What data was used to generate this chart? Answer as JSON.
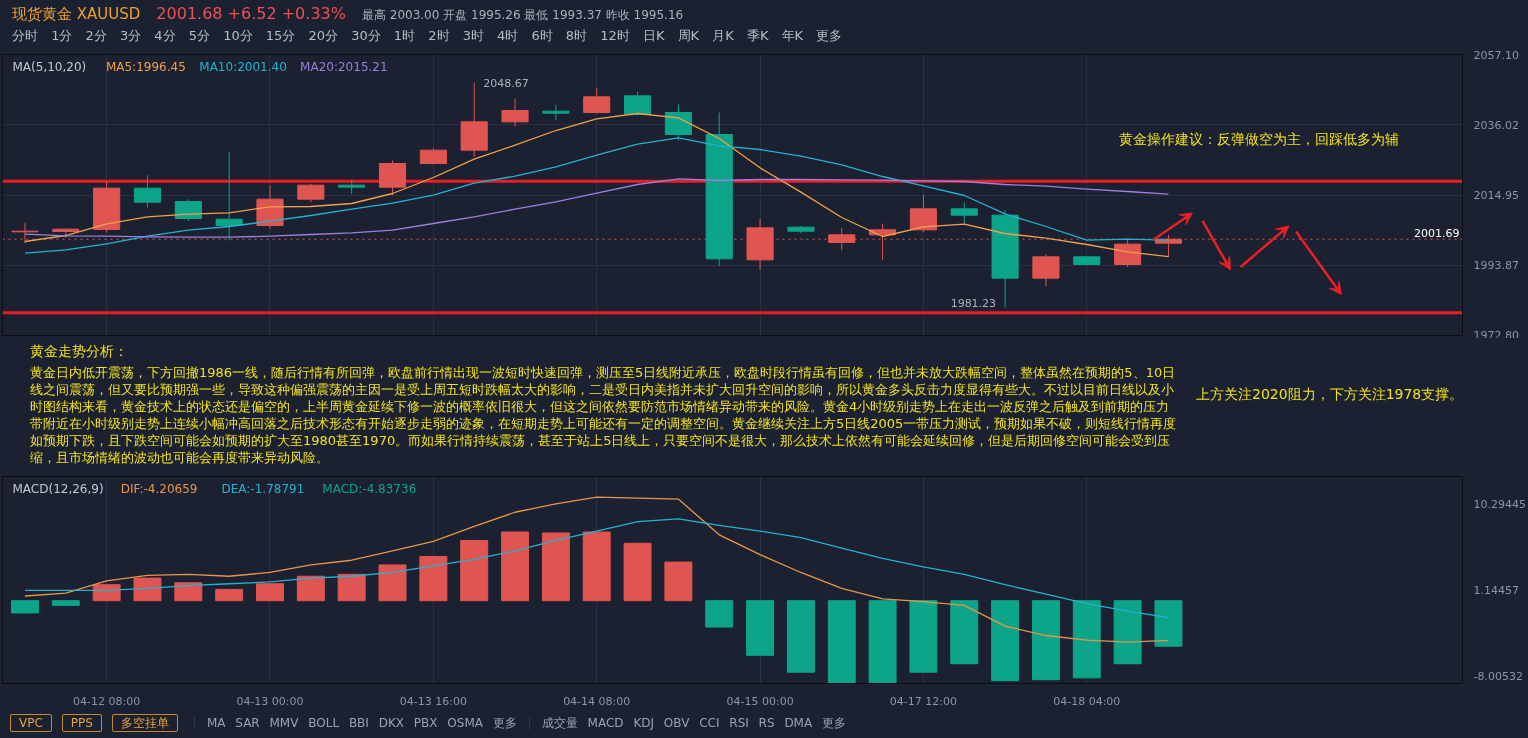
{
  "chart_data": [
    {
      "type": "candlestick",
      "title": "现货黄金 XAUUSD",
      "subtitle": "2001.68 +6.52 +0.33%",
      "categories": [
        null,
        null,
        null,
        null,
        null,
        null,
        null,
        null,
        null,
        null,
        null,
        null,
        null,
        null,
        null,
        null,
        null,
        null,
        null,
        null,
        null,
        null,
        null,
        null,
        null,
        null,
        null,
        null,
        null
      ],
      "ohlc": [
        [
          2003.9,
          2006.6,
          2000.5,
          2004.1
        ],
        [
          2004.0,
          2004.9,
          2002.2,
          2004.7
        ],
        [
          2004.6,
          2019.1,
          2003.7,
          2017.0
        ],
        [
          2017.0,
          2020.9,
          2011.2,
          2012.8
        ],
        [
          2013.0,
          2013.7,
          2007.1,
          2007.9
        ],
        [
          2007.7,
          2027.9,
          2001.3,
          2005.8
        ],
        [
          2005.8,
          2017.9,
          2004.9,
          2013.7
        ],
        [
          2013.7,
          2018.3,
          2012.8,
          2017.9
        ],
        [
          2017.9,
          2019.6,
          2015.3,
          2017.3
        ],
        [
          2017.3,
          2025.3,
          2014.9,
          2024.4
        ],
        [
          2024.4,
          2029.0,
          2024.1,
          2028.4
        ],
        [
          2028.4,
          2048.67,
          2026.3,
          2036.9
        ],
        [
          2036.9,
          2043.8,
          2035.5,
          2040.3
        ],
        [
          2040.1,
          2042.0,
          2037.5,
          2039.5
        ],
        [
          2039.7,
          2047.0,
          2039.4,
          2044.4
        ],
        [
          2044.7,
          2045.9,
          2038.8,
          2039.2
        ],
        [
          2039.7,
          2042.1,
          2031.4,
          2033.1
        ],
        [
          2033.1,
          2039.7,
          1993.6,
          1995.8
        ],
        [
          1995.5,
          2007.8,
          1992.4,
          2005.1
        ],
        [
          2005.3,
          2005.7,
          2003.5,
          2004.1
        ],
        [
          2000.7,
          2005.0,
          1998.4,
          2003.0
        ],
        [
          2003.0,
          2006.4,
          1995.5,
          2004.5
        ],
        [
          2004.5,
          2015.0,
          2003.8,
          2010.8
        ],
        [
          2010.8,
          2012.7,
          2006.3,
          2008.9
        ],
        [
          2008.9,
          2010.4,
          1981.23,
          1990.0
        ],
        [
          1990.0,
          1997.1,
          1987.5,
          1996.4
        ],
        [
          1996.4,
          1996.7,
          1993.9,
          1994.1
        ],
        [
          1994.1,
          2001.9,
          1993.4,
          2000.2
        ],
        [
          2000.5,
          2003.0,
          1996.4,
          2001.69
        ]
      ],
      "colors": [
        "#e05552",
        "#e05552",
        "#e05552",
        "#0ca58a",
        "#0ca58a",
        "#0ca58a",
        "#e05552",
        "#e05552",
        "#0ca58a",
        "#e05552",
        "#e05552",
        "#e05552",
        "#e05552",
        "#0ca58a",
        "#e05552",
        "#0ca58a",
        "#0ca58a",
        "#0ca58a",
        "#e05552",
        "#0ca58a",
        "#e05552",
        "#e05552",
        "#e05552",
        "#0ca58a",
        "#0ca58a",
        "#e05552",
        "#0ca58a",
        "#e05552",
        "#e05552"
      ],
      "series": [
        {
          "type": "line",
          "name": "MA5:1996.45",
          "color": "#f0a04b",
          "values": [
            2001.0,
            2002.8,
            2006.3,
            2008.4,
            2009.2,
            2009.6,
            2011.4,
            2011.5,
            2012.4,
            2015.4,
            2020.2,
            2025.7,
            2029.9,
            2034.3,
            2037.8,
            2039.4,
            2038.1,
            2031.9,
            2023.1,
            2015.8,
            2008.2,
            2002.5,
            2005.4,
            2006.2,
            2003.4,
            2002.0,
            2000.1,
            1997.9,
            1996.45
          ]
        },
        {
          "type": "line",
          "name": "MA10:2001.40",
          "color": "#22b3d0",
          "values": [
            1997.5,
            1998.5,
            2000.3,
            2002.6,
            2004.4,
            2005.5,
            2007.1,
            2008.8,
            2010.7,
            2012.5,
            2014.9,
            2018.5,
            2020.6,
            2023.4,
            2026.9,
            2030.2,
            2032.1,
            2029.7,
            2028.6,
            2026.6,
            2024.0,
            2020.5,
            2017.7,
            2014.8,
            2009.3,
            2005.5,
            2001.4,
            2001.7,
            2001.4
          ]
        },
        {
          "type": "line",
          "name": "MA20:2015.21",
          "color": "#9c7fe0",
          "values": [
            2003.2,
            2002.7,
            2002.6,
            2002.4,
            2002.3,
            2002.3,
            2002.6,
            2003.1,
            2003.6,
            2004.4,
            2006.4,
            2008.4,
            2010.7,
            2012.9,
            2015.5,
            2018.1,
            2019.8,
            2019.3,
            2019.6,
            2019.6,
            2019.5,
            2019.4,
            2019.2,
            2019.0,
            2018.1,
            2017.6,
            2016.7,
            2016.0,
            2015.21
          ]
        }
      ],
      "legend_title": "MA(5,10,20)",
      "legend": "top left",
      "ylim": [
        1972.8,
        2057.1
      ],
      "yticks": [
        {
          "value": 1972.8,
          "label": "1972.80"
        },
        1993.87,
        2014.95,
        2036.02,
        {
          "value": 2057.1,
          "label": "2057.10"
        }
      ],
      "grid": true,
      "tick_labels": "y",
      "ref_lines": [
        {
          "axis": "y",
          "value": 2001.69,
          "color": "#e05552",
          "line_style": "dotted"
        },
        {
          "axis": "y",
          "value": 2019.1,
          "color": "#ee1d24"
        },
        {
          "axis": "y",
          "value": 1979.6,
          "color": "#ee1d24"
        }
      ],
      "annotations": [
        "最高 2003.00 开盘 1995.26 最低 1993.37 昨收 1995.16",
        "分时 1分 2分 3分 4分 5分 10分 15分 20分 30分 1时 2时 3时 4时 6时 8时 12时 日K 周K 月K 季K 年K 更多",
        "2048.67",
        "1981.23",
        "2001.69",
        "黄金操作建议：反弹做空为主，回踩低多为辅",
        "黄金走势分析：",
        "黄金日内低开震荡，下方回撤1986一线，随后行情有所回弹，欧盘前行情出现一波短时快速回弹，测压至5日线附近承压，欧盘时段行情虽有回修，但也并未放大跌幅空间，整体虽然在预期的5、10日线之间震荡，但又要比预期强一些，导致这种偏强震荡的主因一是受上周五短时跌幅太大的影响，二是受日内美指并未扩大回升空间的影响，所以黄金多头反击力度显得有些大。不过以目前日线以及小时图结构来看，黄金技术上的状态还是偏空的，上半周黄金延续下修一波的概率依旧很大，但这之间依然要防范市场情绪异动带来的风险。黄金4小时级别走势上在走出一波反弹之后触及到前期的压力带附近在小时级别走势上连续小幅冲高回落之后技术形态有开始逐步走弱的迹象，在短期走势上可能还有一定的调整空间。黄金继续关注上方5日线2005一带压力测试，预期如果不破，则短线行情再度如预期下跌，且下跌空间可能会如预期的扩大至1980甚至1970。而如果行情持续震荡，甚至于站上5日线上，只要空间不是很大，那么技术上依然有可能会延续回修，但是后期回修空间可能会受到压缩，且市场情绪的波动也可能会再度带来异动风险。",
        "上方关注2020阻力，下方关注1978支撑。"
      ]
    },
    {
      "type": "bar",
      "categories": [
        null,
        null,
        "04-12 08:00",
        null,
        null,
        null,
        "04-13 00:00",
        null,
        null,
        null,
        "04-13 16:00",
        null,
        null,
        null,
        "04-14 08:00",
        null,
        null,
        null,
        "04-15 00:00",
        null,
        null,
        null,
        "04-17 12:00",
        null,
        null,
        null,
        "04-18 04:00",
        null,
        null
      ],
      "series": [
        {
          "type": "line",
          "name": "DIF:-4.20659",
          "color": "#e8954a",
          "values": [
            0.5,
            0.8,
            2.1,
            2.7,
            2.8,
            2.6,
            3.0,
            3.8,
            4.3,
            5.3,
            6.3,
            7.9,
            9.4,
            10.3,
            11.0,
            10.9,
            10.8,
            7.0,
            4.9,
            3.0,
            1.3,
            0.2,
            -0.1,
            -0.5,
            -2.7,
            -3.7,
            -4.2,
            -4.4,
            -4.20659
          ]
        },
        {
          "type": "line",
          "name": "DEA:-1.78791",
          "color": "#22b3d0",
          "values": [
            1.1,
            1.1,
            1.1,
            1.3,
            1.6,
            1.8,
            2.0,
            2.4,
            2.6,
            3.0,
            3.7,
            4.4,
            5.3,
            6.4,
            7.4,
            8.4,
            8.7,
            8.0,
            7.4,
            6.7,
            5.6,
            4.5,
            3.6,
            2.8,
            1.7,
            0.7,
            -0.3,
            -1.1,
            -1.78791
          ]
        },
        {
          "type": "bar",
          "name": "MACD:-4.83736",
          "colors": [
            "#0ca58a",
            "#0ca58a",
            "#e05552",
            "#e05552",
            "#e05552",
            "#e05552",
            "#e05552",
            "#e05552",
            "#e05552",
            "#e05552",
            "#e05552",
            "#e05552",
            "#e05552",
            "#e05552",
            "#e05552",
            "#e05552",
            "#e05552",
            "#0ca58a",
            "#0ca58a",
            "#0ca58a",
            "#0ca58a",
            "#0ca58a",
            "#0ca58a",
            "#0ca58a",
            "#0ca58a",
            "#0ca58a",
            "#0ca58a",
            "#0ca58a",
            "#0ca58a"
          ],
          "values": [
            -1.3,
            -0.5,
            1.7,
            2.4,
            1.9,
            1.2,
            1.8,
            2.6,
            2.8,
            3.8,
            4.7,
            6.4,
            7.3,
            7.2,
            7.3,
            6.1,
            4.1,
            -2.8,
            -5.8,
            -7.6,
            -8.7,
            -8.7,
            -7.6,
            -6.7,
            -8.5,
            -8.4,
            -8.2,
            -6.7,
            -4.83736
          ]
        }
      ],
      "legend_title": "MACD(12,26,9)",
      "legend": "top left",
      "ylim": [
        -8.8,
        13.2
      ],
      "yticks": [
        10.29445,
        1.14457,
        -8.00532
      ],
      "grid": "x",
      "annotations": [
        "VPC",
        "PPS",
        "多空挂单",
        "MA SAR MMV BOLL BBI DKX PBX OSMA 更多",
        "成交量 MACD KDJ OBV CCI RSI RS DMA 更多"
      ]
    }
  ]
}
